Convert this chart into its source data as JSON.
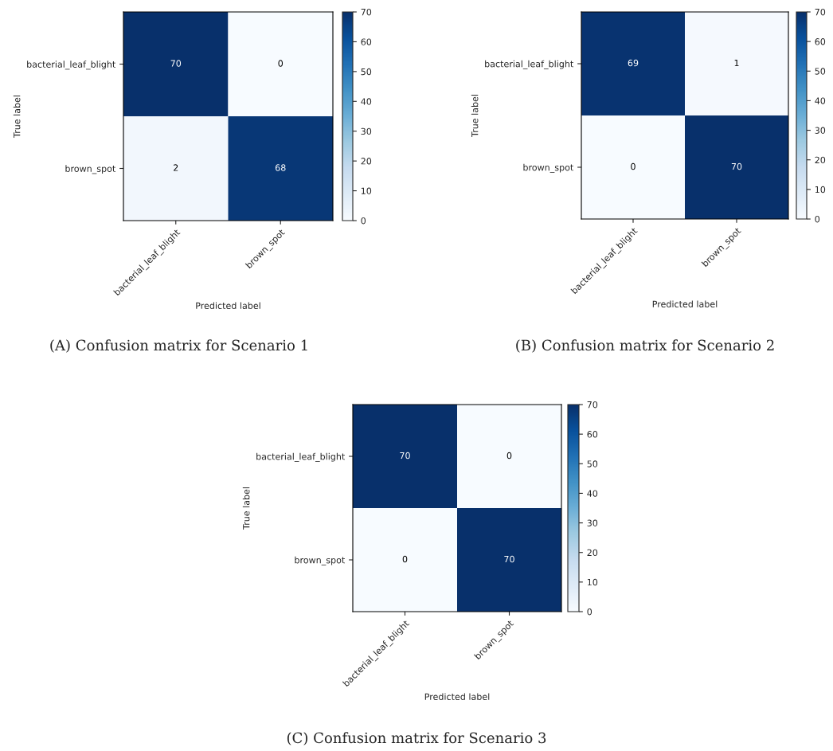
{
  "chart_data": [
    {
      "type": "heatmap",
      "categories": [
        "bacterial_leaf_blight",
        "brown_spot"
      ],
      "y_categories": [
        "bacterial_leaf_blight",
        "brown_spot"
      ],
      "cells": [
        [
          70,
          0
        ],
        [
          2,
          68
        ]
      ],
      "clim": [
        0,
        70
      ],
      "cticks": [
        0,
        10,
        20,
        30,
        40,
        50,
        60,
        70
      ],
      "xlabel": "Predicted label",
      "ylabel": "True label",
      "data_labels": true,
      "annotations": [
        "(A) Confusion matrix for Scenario 1"
      ]
    },
    {
      "type": "heatmap",
      "categories": [
        "bacterial_leaf_blight",
        "brown_spot"
      ],
      "y_categories": [
        "bacterial_leaf_blight",
        "brown_spot"
      ],
      "cells": [
        [
          69,
          1
        ],
        [
          0,
          70
        ]
      ],
      "clim": [
        0,
        70
      ],
      "cticks": [
        0,
        10,
        20,
        30,
        40,
        50,
        60,
        70
      ],
      "xlabel": "Predicted label",
      "ylabel": "True label",
      "data_labels": true,
      "annotations": [
        "(B) Confusion matrix for Scenario 2"
      ]
    },
    {
      "type": "heatmap",
      "categories": [
        "bacterial_leaf_blight",
        "brown_spot"
      ],
      "y_categories": [
        "bacterial_leaf_blight",
        "brown_spot"
      ],
      "cells": [
        [
          70,
          0
        ],
        [
          0,
          70
        ]
      ],
      "clim": [
        0,
        70
      ],
      "cticks": [
        0,
        10,
        20,
        30,
        40,
        50,
        60,
        70
      ],
      "xlabel": "Predicted label",
      "ylabel": "True label",
      "data_labels": true,
      "annotations": [
        "(C) Confusion matrix for Scenario 3"
      ]
    }
  ]
}
